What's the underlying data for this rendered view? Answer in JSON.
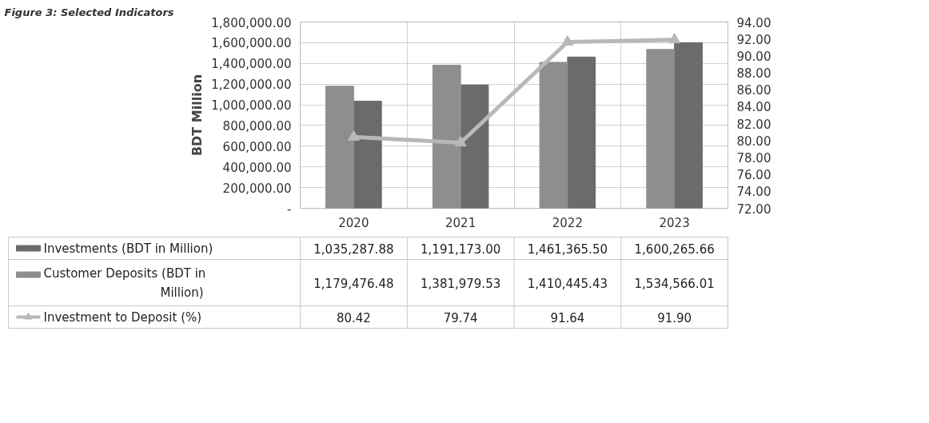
{
  "chart_data": {
    "type": "bar",
    "title": "Figure 3: Selected Indicators",
    "categories": [
      "2020",
      "2021",
      "2022",
      "2023"
    ],
    "ylabel": "BDT Million",
    "ylim": [
      0,
      1800000
    ],
    "yticks": [
      {
        "value": 0,
        "label": "-"
      },
      {
        "value": 200000,
        "label": "200,000.00"
      },
      {
        "value": 400000,
        "label": "400,000.00"
      },
      {
        "value": 600000,
        "label": "600,000.00"
      },
      {
        "value": 800000,
        "label": "800,000.00"
      },
      {
        "value": 1000000,
        "label": "1,000,000.00"
      },
      {
        "value": 1200000,
        "label": "1,200,000.00"
      },
      {
        "value": 1400000,
        "label": "1,400,000.00"
      },
      {
        "value": 1600000,
        "label": "1,600,000.00"
      },
      {
        "value": 1800000,
        "label": "1,800,000.00"
      }
    ],
    "y2lim": [
      72,
      94
    ],
    "y2ticks": [
      {
        "value": 72,
        "label": "72.00"
      },
      {
        "value": 74,
        "label": "74.00"
      },
      {
        "value": 76,
        "label": "76.00"
      },
      {
        "value": 78,
        "label": "78.00"
      },
      {
        "value": 80,
        "label": "80.00"
      },
      {
        "value": 82,
        "label": "82.00"
      },
      {
        "value": 84,
        "label": "84.00"
      },
      {
        "value": 86,
        "label": "86.00"
      },
      {
        "value": 88,
        "label": "88.00"
      },
      {
        "value": 90,
        "label": "90.00"
      },
      {
        "value": 92,
        "label": "92.00"
      },
      {
        "value": 94,
        "label": "94.00"
      }
    ],
    "grid": "y",
    "legend": "bottom",
    "series": [
      {
        "name": "Investments (BDT in Million)",
        "color": "#6b6b6b",
        "values": [
          1035287.88,
          1191173.0,
          1461365.5,
          1600265.66
        ],
        "value_labels": [
          "1,035,287.88",
          "1,191,173.00",
          "1,461,365.50",
          "1,600,265.66"
        ]
      },
      {
        "name": "Customer Deposits (BDT in Million)",
        "color": "#8e8e8e",
        "values": [
          1179476.48,
          1381979.53,
          1410445.43,
          1534566.01
        ],
        "value_labels": [
          "1,179,476.48",
          "1,381,979.53",
          "1,410,445.43",
          "1,534,566.01"
        ]
      },
      {
        "name": "Investment to Deposit (%)",
        "type": "line",
        "axis": "y2",
        "marker": "triangle",
        "color": "#b8b8b8",
        "values": [
          80.42,
          79.74,
          91.64,
          91.9
        ],
        "value_labels": [
          "80.42",
          "79.74",
          "91.64",
          "91.90"
        ]
      }
    ]
  }
}
